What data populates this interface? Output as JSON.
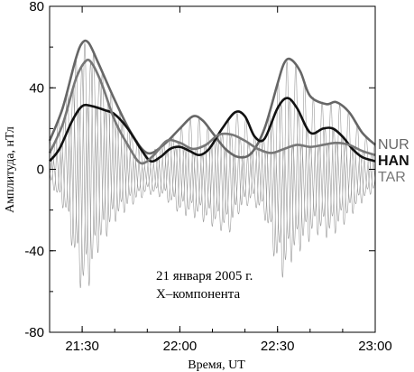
{
  "chart_data": {
    "type": "line",
    "xlabel": "Время, UT",
    "ylabel": "Амплитуда, нТл",
    "xlim": [
      "21:20",
      "23:00"
    ],
    "ylim": [
      -80,
      80
    ],
    "x_ticks": [
      "21:30",
      "22:00",
      "22:30",
      "23:00"
    ],
    "y_ticks": [
      80,
      40,
      0,
      -40,
      -80
    ],
    "grid": false,
    "annotations": [
      "21 января 2005 г.",
      "X–компонента"
    ],
    "legend_placement": "right",
    "series": [
      {
        "name": "NUR",
        "role": "envelope",
        "color": "#666666",
        "points": [
          [
            "21:20",
            14
          ],
          [
            "21:24",
            30
          ],
          [
            "21:28",
            54
          ],
          [
            "21:30",
            62
          ],
          [
            "21:32",
            62
          ],
          [
            "21:35",
            52
          ],
          [
            "21:40",
            34
          ],
          [
            "21:45",
            18
          ],
          [
            "21:50",
            8
          ],
          [
            "21:55",
            12
          ],
          [
            "22:00",
            20
          ],
          [
            "22:04",
            26
          ],
          [
            "22:07",
            24
          ],
          [
            "22:10",
            18
          ],
          [
            "22:14",
            10
          ],
          [
            "22:18",
            6
          ],
          [
            "22:22",
            8
          ],
          [
            "22:26",
            20
          ],
          [
            "22:30",
            42
          ],
          [
            "22:32",
            52
          ],
          [
            "22:34",
            54
          ],
          [
            "22:37",
            48
          ],
          [
            "22:40",
            36
          ],
          [
            "22:45",
            32
          ],
          [
            "22:48",
            33
          ],
          [
            "22:52",
            28
          ],
          [
            "22:56",
            18
          ],
          [
            "23:00",
            12
          ]
        ]
      },
      {
        "name": "HAN",
        "role": "envelope",
        "color": "#111111",
        "points": [
          [
            "21:20",
            4
          ],
          [
            "21:23",
            10
          ],
          [
            "21:27",
            24
          ],
          [
            "21:30",
            31
          ],
          [
            "21:33",
            31
          ],
          [
            "21:37",
            29
          ],
          [
            "21:40",
            27
          ],
          [
            "21:44",
            20
          ],
          [
            "21:48",
            10
          ],
          [
            "21:51",
            4
          ],
          [
            "21:54",
            6
          ],
          [
            "21:57",
            10
          ],
          [
            "22:00",
            11
          ],
          [
            "22:03",
            9
          ],
          [
            "22:06",
            7
          ],
          [
            "22:09",
            10
          ],
          [
            "22:13",
            20
          ],
          [
            "22:17",
            28
          ],
          [
            "22:20",
            26
          ],
          [
            "22:23",
            16
          ],
          [
            "22:26",
            15
          ],
          [
            "22:30",
            30
          ],
          [
            "22:33",
            35
          ],
          [
            "22:36",
            30
          ],
          [
            "22:40",
            18
          ],
          [
            "22:44",
            20
          ],
          [
            "22:47",
            20
          ],
          [
            "22:50",
            16
          ],
          [
            "22:53",
            10
          ],
          [
            "22:56",
            6
          ],
          [
            "23:00",
            4
          ]
        ]
      },
      {
        "name": "TAR",
        "role": "envelope",
        "color": "#777777",
        "points": [
          [
            "21:20",
            8
          ],
          [
            "21:24",
            22
          ],
          [
            "21:28",
            44
          ],
          [
            "21:31",
            53
          ],
          [
            "21:33",
            52
          ],
          [
            "21:36",
            42
          ],
          [
            "21:40",
            24
          ],
          [
            "21:44",
            12
          ],
          [
            "21:48",
            3
          ],
          [
            "21:52",
            7
          ],
          [
            "21:56",
            14
          ],
          [
            "22:00",
            13
          ],
          [
            "22:04",
            10
          ],
          [
            "22:08",
            12
          ],
          [
            "22:12",
            17
          ],
          [
            "22:16",
            17
          ],
          [
            "22:20",
            14
          ],
          [
            "22:24",
            10
          ],
          [
            "22:28",
            8
          ],
          [
            "22:32",
            10
          ],
          [
            "22:36",
            12
          ],
          [
            "22:40",
            11
          ],
          [
            "22:44",
            12
          ],
          [
            "22:48",
            13
          ],
          [
            "22:52",
            12
          ],
          [
            "22:56",
            9
          ],
          [
            "23:00",
            7
          ]
        ]
      }
    ],
    "oscillation": {
      "role": "raw X-component traces (thin grey)",
      "color": "#999999",
      "period_minutes": 2.7,
      "phase_offsets_minutes": [
        0,
        0.9,
        1.8
      ],
      "min_amplitude": [
        [
          "21:20",
          -6
        ],
        [
          "21:25",
          -22
        ],
        [
          "21:28",
          -48
        ],
        [
          "21:30",
          -62
        ],
        [
          "21:32",
          -58
        ],
        [
          "21:35",
          -40
        ],
        [
          "21:40",
          -26
        ],
        [
          "21:45",
          -18
        ],
        [
          "21:50",
          -12
        ],
        [
          "21:55",
          -14
        ],
        [
          "22:00",
          -22
        ],
        [
          "22:05",
          -24
        ],
        [
          "22:10",
          -28
        ],
        [
          "22:15",
          -32
        ],
        [
          "22:18",
          -22
        ],
        [
          "22:22",
          -16
        ],
        [
          "22:26",
          -24
        ],
        [
          "22:30",
          -50
        ],
        [
          "22:32",
          -54
        ],
        [
          "22:34",
          -46
        ],
        [
          "22:38",
          -38
        ],
        [
          "22:42",
          -32
        ],
        [
          "22:46",
          -34
        ],
        [
          "22:50",
          -28
        ],
        [
          "22:55",
          -18
        ],
        [
          "23:00",
          -10
        ]
      ]
    }
  }
}
